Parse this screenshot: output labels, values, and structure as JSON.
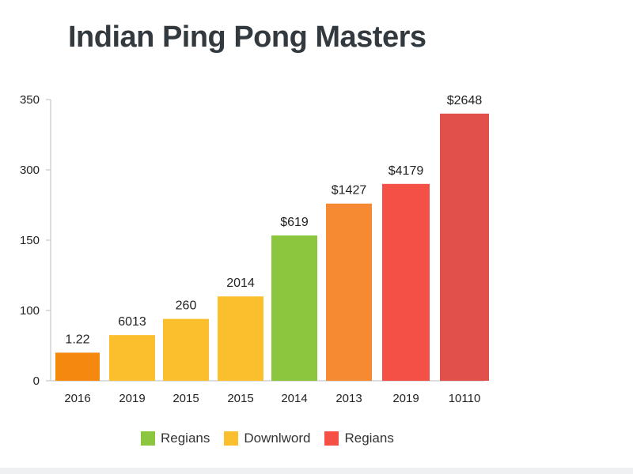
{
  "chart_data": {
    "type": "bar",
    "title": "Indian Ping Pong Masters",
    "xlabel": "",
    "ylabel": "",
    "y_ticks": [
      {
        "label": "0",
        "value": 0
      },
      {
        "label": "100",
        "value": 100
      },
      {
        "label": "150",
        "value": 150
      },
      {
        "label": "300",
        "value": 300
      },
      {
        "label": "350",
        "value": 350
      }
    ],
    "categories": [
      "2016",
      "2019",
      "2015",
      "2015",
      "2014",
      "2013",
      "2019",
      "10110"
    ],
    "values": [
      40,
      65,
      88,
      110,
      160,
      228,
      270,
      340
    ],
    "data_labels": [
      "1.22",
      "6013",
      "260",
      "2014",
      "$619",
      "$1427",
      "$4179",
      "$2648"
    ],
    "bar_colors": [
      "#f5880f",
      "#fbbf2e",
      "#fbbf2e",
      "#fbbf2e",
      "#8cc63f",
      "#f68a33",
      "#f55045",
      "#e2504b"
    ],
    "grid": false,
    "legend_position": "bottom",
    "legend": [
      {
        "label": "Regians",
        "color": "#8cc63f"
      },
      {
        "label": "Downlword",
        "color": "#fbbf2e"
      },
      {
        "label": "Regians",
        "color": "#f55045"
      }
    ]
  }
}
